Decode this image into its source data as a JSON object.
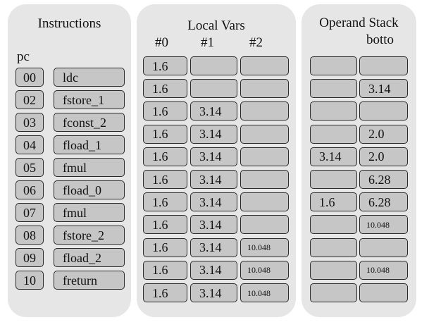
{
  "instructions": {
    "title": "Instructions",
    "pc_label": "pc",
    "rows": [
      {
        "pc": "00",
        "op": "ldc"
      },
      {
        "pc": "02",
        "op": "fstore_1"
      },
      {
        "pc": "03",
        "op": "fconst_2"
      },
      {
        "pc": "04",
        "op": "fload_1"
      },
      {
        "pc": "05",
        "op": "fmul"
      },
      {
        "pc": "06",
        "op": "fload_0"
      },
      {
        "pc": "07",
        "op": "fmul"
      },
      {
        "pc": "08",
        "op": "fstore_2"
      },
      {
        "pc": "09",
        "op": "fload_2"
      },
      {
        "pc": "10",
        "op": "freturn"
      }
    ]
  },
  "local_vars": {
    "title": "Local Vars",
    "headers": [
      "#0",
      "#1",
      "#2"
    ],
    "rows": [
      [
        "1.6",
        "",
        ""
      ],
      [
        "1.6",
        "",
        ""
      ],
      [
        "1.6",
        "3.14",
        ""
      ],
      [
        "1.6",
        "3.14",
        ""
      ],
      [
        "1.6",
        "3.14",
        ""
      ],
      [
        "1.6",
        "3.14",
        ""
      ],
      [
        "1.6",
        "3.14",
        ""
      ],
      [
        "1.6",
        "3.14",
        ""
      ],
      [
        "1.6",
        "3.14",
        "10.048"
      ],
      [
        "1.6",
        "3.14",
        "10.048"
      ],
      [
        "1.6",
        "3.14",
        "10.048"
      ]
    ]
  },
  "operand_stack": {
    "title": "Operand Stack",
    "bottom_label": "botto",
    "rows": [
      [
        "",
        ""
      ],
      [
        "",
        "3.14"
      ],
      [
        "",
        ""
      ],
      [
        "",
        "2.0"
      ],
      [
        "3.14",
        "2.0"
      ],
      [
        "",
        "6.28"
      ],
      [
        "1.6",
        "6.28"
      ],
      [
        "",
        "10.048"
      ],
      [
        "",
        ""
      ],
      [
        "",
        "10.048"
      ],
      [
        "",
        ""
      ]
    ]
  }
}
